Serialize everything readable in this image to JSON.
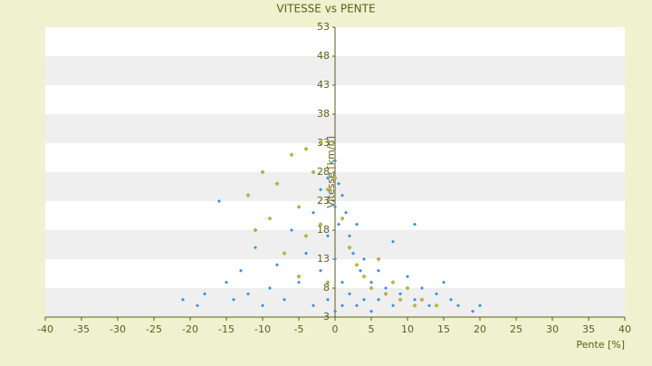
{
  "chart_data": {
    "type": "scatter",
    "title": "VITESSE vs PENTE",
    "x_label": "Pente [%]",
    "y_label": "Vitesse [km/h]",
    "xlim": [
      -40,
      40
    ],
    "xticks": [
      -40,
      -35,
      -30,
      -25,
      -20,
      -15,
      -10,
      -5,
      0,
      5,
      10,
      15,
      20,
      25,
      30,
      35,
      40
    ],
    "ylim": [
      3,
      53
    ],
    "yticks": [
      3,
      8,
      13,
      18,
      23,
      28,
      33,
      38,
      43,
      48,
      53
    ],
    "grid": true,
    "series": [
      {
        "color": "#c8c41e",
        "x": [
          -12,
          -11,
          -10,
          -9,
          -8,
          -7,
          -6,
          -5,
          -5,
          -4,
          -4,
          -3,
          -2,
          -2,
          -1,
          -1,
          0,
          1,
          2,
          3,
          4,
          5,
          6,
          7,
          8,
          9,
          10,
          11,
          12,
          14
        ],
        "y": [
          24,
          18,
          28,
          20,
          26,
          14,
          31,
          22,
          10,
          32,
          17,
          28,
          33,
          19,
          25,
          9,
          27,
          20,
          15,
          12,
          10,
          8,
          13,
          7,
          9,
          6,
          8,
          5,
          6,
          5
        ]
      },
      {
        "color": "#3d8fdc",
        "x": [
          -21,
          -19,
          -18,
          -16,
          -15,
          -14,
          -13,
          -12,
          -11,
          -10,
          -9,
          -8,
          -7,
          -6,
          -5,
          -4,
          -3,
          -3,
          -2,
          -2,
          -1,
          -1,
          -1,
          0,
          0,
          0,
          0,
          0.5,
          0.5,
          1,
          1,
          1,
          1.5,
          2,
          2,
          2.5,
          3,
          3,
          3.5,
          4,
          4,
          5,
          5,
          6,
          6,
          7,
          8,
          8,
          9,
          10,
          11,
          11,
          12,
          13,
          14,
          15,
          16,
          17,
          19,
          20
        ],
        "y": [
          6,
          5,
          7,
          23,
          9,
          6,
          11,
          7,
          15,
          5,
          8,
          12,
          6,
          18,
          9,
          14,
          21,
          5,
          25,
          11,
          27,
          17,
          6,
          30,
          22,
          13,
          4,
          26,
          19,
          24,
          9,
          5,
          21,
          17,
          7,
          14,
          19,
          5,
          11,
          13,
          6,
          9,
          4,
          11,
          6,
          8,
          5,
          16,
          7,
          10,
          19,
          6,
          8,
          5,
          7,
          9,
          6,
          5,
          4,
          5
        ]
      }
    ]
  }
}
